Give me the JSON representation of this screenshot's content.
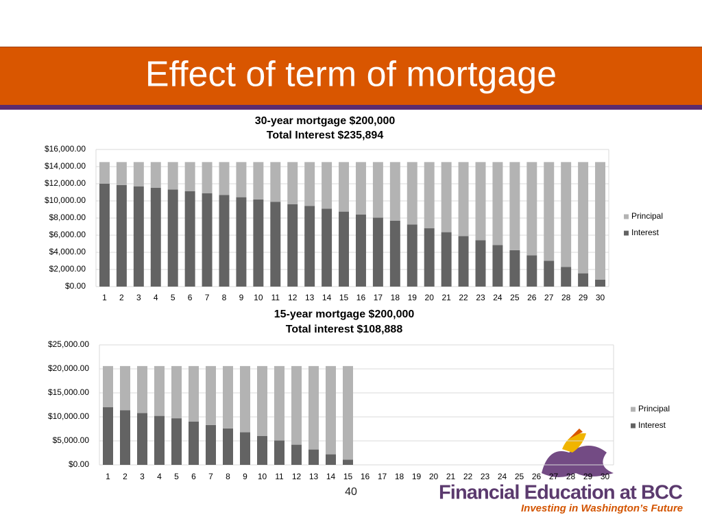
{
  "title": "Effect of term of mortgage",
  "page_number": "40",
  "logo": {
    "title": "Financial Education at BCC",
    "subtitle": "Investing in Washington’s Future"
  },
  "chart_data": [
    {
      "type": "bar",
      "stacked": true,
      "title": [
        "30-year mortgage $200,000",
        "Total Interest $235,894"
      ],
      "categories": [
        "1",
        "2",
        "3",
        "4",
        "5",
        "6",
        "7",
        "8",
        "9",
        "10",
        "11",
        "12",
        "13",
        "14",
        "15",
        "16",
        "17",
        "18",
        "19",
        "20",
        "21",
        "22",
        "23",
        "24",
        "25",
        "26",
        "27",
        "28",
        "29",
        "30"
      ],
      "series": [
        {
          "name": "Interest",
          "color": "#636363",
          "values": [
            12000,
            11850,
            11700,
            11520,
            11330,
            11120,
            10900,
            10680,
            10430,
            10170,
            9900,
            9600,
            9400,
            9080,
            8750,
            8400,
            8050,
            7680,
            7250,
            6820,
            6350,
            5880,
            5400,
            4850,
            4250,
            3650,
            3000,
            2300,
            1550,
            800
          ]
        },
        {
          "name": "Principal",
          "color": "#b3b3b3",
          "values": [
            2530,
            2680,
            2830,
            3010,
            3200,
            3410,
            3630,
            3850,
            4100,
            4360,
            4630,
            4930,
            5130,
            5450,
            5780,
            6130,
            6480,
            6850,
            7280,
            7710,
            8180,
            8650,
            9130,
            9680,
            10280,
            10880,
            11530,
            12230,
            12980,
            13730
          ]
        }
      ],
      "ylim": [
        0,
        16000
      ],
      "yticks": [
        {
          "value": 0,
          "label": "$0.00"
        },
        {
          "value": 2000,
          "label": "$2,000.00"
        },
        {
          "value": 4000,
          "label": "$4,000.00"
        },
        {
          "value": 6000,
          "label": "$6,000.00"
        },
        {
          "value": 8000,
          "label": "$8,000.00"
        },
        {
          "value": 10000,
          "label": "$10,000.00"
        },
        {
          "value": 12000,
          "label": "$12,000.00"
        },
        {
          "value": 14000,
          "label": "$14,000.00"
        },
        {
          "value": 16000,
          "label": "$16,000.00"
        }
      ],
      "grid": true,
      "legend": "right"
    },
    {
      "type": "bar",
      "stacked": true,
      "title": [
        "15-year mortgage $200,000",
        "Total interest  $108,888"
      ],
      "categories": [
        "1",
        "2",
        "3",
        "4",
        "5",
        "6",
        "7",
        "8",
        "9",
        "10",
        "11",
        "12",
        "13",
        "14",
        "15",
        "16",
        "17",
        "18",
        "19",
        "20",
        "21",
        "22",
        "23",
        "24",
        "25",
        "26",
        "27",
        "28",
        "29",
        "30"
      ],
      "series": [
        {
          "name": "Interest",
          "color": "#636363",
          "values": [
            12000,
            11400,
            10800,
            10200,
            9700,
            9000,
            8300,
            7600,
            6800,
            6000,
            5100,
            4200,
            3200,
            2200,
            1100,
            null,
            null,
            null,
            null,
            null,
            null,
            null,
            null,
            null,
            null,
            null,
            null,
            null,
            null,
            null
          ]
        },
        {
          "name": "Principal",
          "color": "#b3b3b3",
          "values": [
            8590,
            9190,
            9790,
            10390,
            10890,
            11590,
            12290,
            12990,
            13790,
            14590,
            15490,
            16390,
            17390,
            18390,
            19490,
            null,
            null,
            null,
            null,
            null,
            null,
            null,
            null,
            null,
            null,
            null,
            null,
            null,
            null,
            null
          ]
        }
      ],
      "ylim": [
        0,
        25000
      ],
      "yticks": [
        {
          "value": 0,
          "label": "$0.00"
        },
        {
          "value": 5000,
          "label": "$5,000.00"
        },
        {
          "value": 10000,
          "label": "$10,000.00"
        },
        {
          "value": 15000,
          "label": "$15,000.00"
        },
        {
          "value": 20000,
          "label": "$20,000.00"
        },
        {
          "value": 25000,
          "label": "$25,000.00"
        }
      ],
      "grid": true,
      "legend": "right"
    }
  ]
}
